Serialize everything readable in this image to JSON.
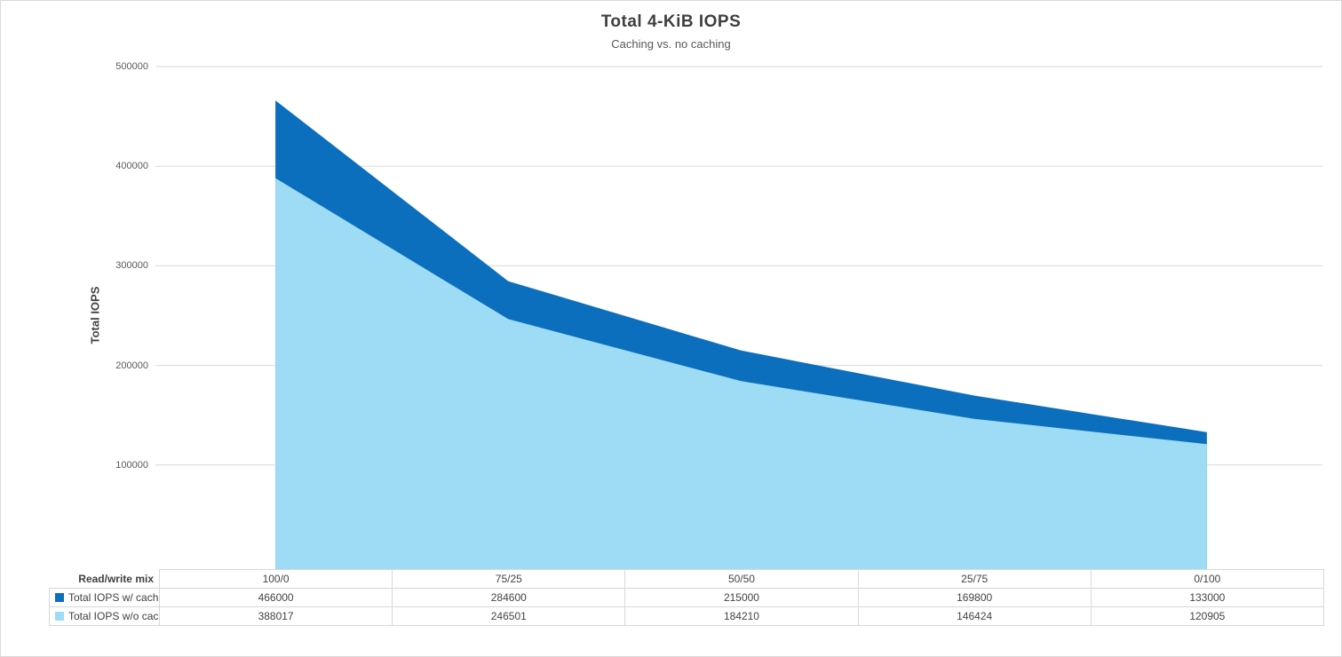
{
  "chart_data": {
    "type": "area",
    "title": "Total 4-KiB IOPS",
    "subtitle": "Caching vs. no caching",
    "xlabel": "Read/write mix",
    "ylabel": "Total IOPS",
    "categories": [
      "100/0",
      "75/25",
      "50/50",
      "25/75",
      "0/100"
    ],
    "series": [
      {
        "name": "Total IOPS w/ cache",
        "color": "#0b6fbe",
        "values": [
          466000,
          284600,
          215000,
          169800,
          133000
        ]
      },
      {
        "name": "Total IOPS w/o cache",
        "color": "#9edcf5",
        "values": [
          388017,
          246501,
          184210,
          146424,
          120905
        ]
      }
    ],
    "ylim": [
      0,
      500000
    ],
    "yticks": [
      100000,
      200000,
      300000,
      400000,
      500000
    ],
    "grid": true,
    "gridline_color": "#d9d9d9",
    "legend_position": "data-table-left"
  },
  "colors": {
    "title_text": "#3f3f3f",
    "secondary_text": "#595959",
    "table_text": "#404040",
    "border_and_grid": "#d9d9d9",
    "series_with_cache": "#0b6fbe",
    "series_without_cache": "#9edcf5"
  }
}
